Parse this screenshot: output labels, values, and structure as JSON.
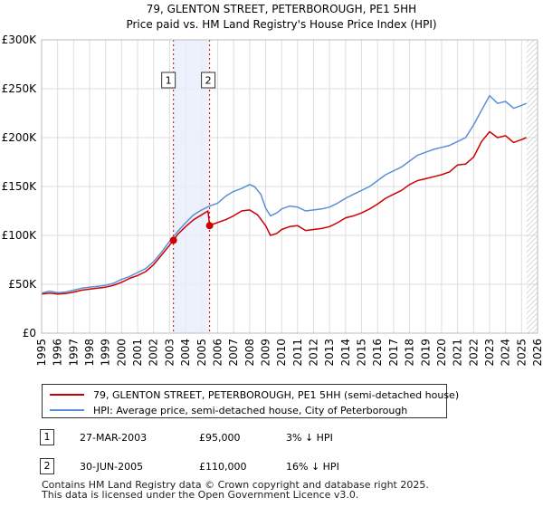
{
  "chart_data": {
    "type": "line",
    "title": "79, GLENTON STREET, PETERBOROUGH, PE1 5HH",
    "subtitle": "Price paid vs. HM Land Registry's House Price Index (HPI)",
    "xlabel": "",
    "ylabel": "",
    "xlim": [
      1995,
      2026
    ],
    "ylim": [
      0,
      300000
    ],
    "x_ticks": [
      "1995",
      "1996",
      "1997",
      "1998",
      "1999",
      "2000",
      "2001",
      "2002",
      "2003",
      "2004",
      "2005",
      "2006",
      "2007",
      "2008",
      "2009",
      "2010",
      "2011",
      "2012",
      "2013",
      "2014",
      "2015",
      "2016",
      "2017",
      "2018",
      "2019",
      "2020",
      "2021",
      "2022",
      "2023",
      "2024",
      "2025",
      "2026"
    ],
    "y_ticks": [
      {
        "value": 0,
        "label": "£0"
      },
      {
        "value": 50000,
        "label": "£50K"
      },
      {
        "value": 100000,
        "label": "£100K"
      },
      {
        "value": 150000,
        "label": "£150K"
      },
      {
        "value": 200000,
        "label": "£200K"
      },
      {
        "value": 250000,
        "label": "£250K"
      },
      {
        "value": 300000,
        "label": "£300K"
      }
    ],
    "grid": true,
    "shaded_band": {
      "from": 2003.24,
      "to": 2005.5
    },
    "forecast_hatch_from": 2025.3,
    "annotations": [
      {
        "id": "1",
        "x": 2003.24,
        "value": 95000
      },
      {
        "id": "2",
        "x": 2005.5,
        "value": 110000
      }
    ],
    "series": [
      {
        "name": "79, GLENTON STREET, PETERBOROUGH, PE1 5HH (semi-detached house)",
        "color": "#cc0000",
        "x": [
          1995.0,
          1995.5,
          1996.0,
          1996.5,
          1997.0,
          1997.5,
          1998.0,
          1998.5,
          1999.0,
          1999.5,
          2000.0,
          2000.5,
          2001.0,
          2001.5,
          2002.0,
          2002.5,
          2003.0,
          2003.24,
          2003.5,
          2004.0,
          2004.5,
          2005.0,
          2005.4,
          2005.5,
          2005.8,
          2006.5,
          2007.0,
          2007.5,
          2008.0,
          2008.5,
          2009.0,
          2009.3,
          2009.7,
          2010.0,
          2010.5,
          2011.0,
          2011.5,
          2012.0,
          2012.5,
          2013.0,
          2013.5,
          2014.0,
          2014.5,
          2015.0,
          2015.5,
          2016.0,
          2016.5,
          2017.0,
          2017.5,
          2018.0,
          2018.5,
          2019.0,
          2019.5,
          2020.0,
          2020.5,
          2021.0,
          2021.5,
          2022.0,
          2022.5,
          2023.0,
          2023.5,
          2024.0,
          2024.5,
          2025.0,
          2025.3
        ],
        "values": [
          40000,
          41000,
          40000,
          40500,
          42000,
          44000,
          45000,
          46000,
          47000,
          49000,
          52000,
          56000,
          59000,
          63000,
          70000,
          80000,
          90000,
          95000,
          101000,
          109000,
          116000,
          121000,
          125000,
          110000,
          112000,
          116000,
          120000,
          125000,
          126000,
          121000,
          110000,
          100000,
          102000,
          106000,
          109000,
          110000,
          105000,
          106000,
          107000,
          109000,
          113000,
          118000,
          120000,
          123000,
          127000,
          132000,
          138000,
          142000,
          146000,
          152000,
          156000,
          158000,
          160000,
          162000,
          165000,
          172000,
          173000,
          180000,
          196000,
          206000,
          200000,
          202000,
          195000,
          198000,
          200000
        ]
      },
      {
        "name": "HPI: Average price, semi-detached house, City of Peterborough",
        "color": "#5b8fd6",
        "x": [
          1995.0,
          1995.5,
          1996.0,
          1996.5,
          1997.0,
          1997.5,
          1998.0,
          1998.5,
          1999.0,
          1999.5,
          2000.0,
          2000.5,
          2001.0,
          2001.5,
          2002.0,
          2002.5,
          2003.0,
          2003.5,
          2004.0,
          2004.5,
          2005.0,
          2005.5,
          2006.0,
          2006.5,
          2007.0,
          2007.5,
          2008.0,
          2008.3,
          2008.7,
          2009.0,
          2009.3,
          2009.7,
          2010.0,
          2010.5,
          2011.0,
          2011.5,
          2012.0,
          2012.5,
          2013.0,
          2013.5,
          2014.0,
          2014.5,
          2015.0,
          2015.5,
          2016.0,
          2016.5,
          2017.0,
          2017.5,
          2018.0,
          2018.5,
          2019.0,
          2019.5,
          2020.0,
          2020.5,
          2021.0,
          2021.5,
          2022.0,
          2022.5,
          2023.0,
          2023.5,
          2024.0,
          2024.5,
          2025.0,
          2025.3
        ],
        "values": [
          41000,
          43000,
          41500,
          42000,
          44000,
          46000,
          47000,
          48000,
          49000,
          51000,
          55000,
          58000,
          62000,
          66000,
          73000,
          83000,
          94000,
          104000,
          113000,
          121000,
          126000,
          130000,
          133000,
          140000,
          145000,
          148000,
          152000,
          150000,
          142000,
          128000,
          120000,
          123000,
          127000,
          130000,
          129000,
          125000,
          126000,
          127000,
          129000,
          133000,
          138000,
          142000,
          146000,
          150000,
          156000,
          162000,
          166000,
          170000,
          176000,
          182000,
          185000,
          188000,
          190000,
          192000,
          196000,
          200000,
          213000,
          228000,
          243000,
          235000,
          237000,
          230000,
          233000,
          235000
        ]
      }
    ]
  },
  "legend": {
    "items": [
      {
        "label": "79, GLENTON STREET, PETERBOROUGH, PE1 5HH (semi-detached house)",
        "color": "#cc0000"
      },
      {
        "label": "HPI: Average price, semi-detached house, City of Peterborough",
        "color": "#5b8fd6"
      }
    ]
  },
  "transactions": [
    {
      "id": "1",
      "date": "27-MAR-2003",
      "price": "£95,000",
      "hpi": "3% ↓ HPI"
    },
    {
      "id": "2",
      "date": "30-JUN-2005",
      "price": "£110,000",
      "hpi": "16% ↓ HPI"
    }
  ],
  "footer": {
    "line1": "Contains HM Land Registry data © Crown copyright and database right 2025.",
    "line2": "This data is licensed under the Open Government Licence v3.0."
  }
}
